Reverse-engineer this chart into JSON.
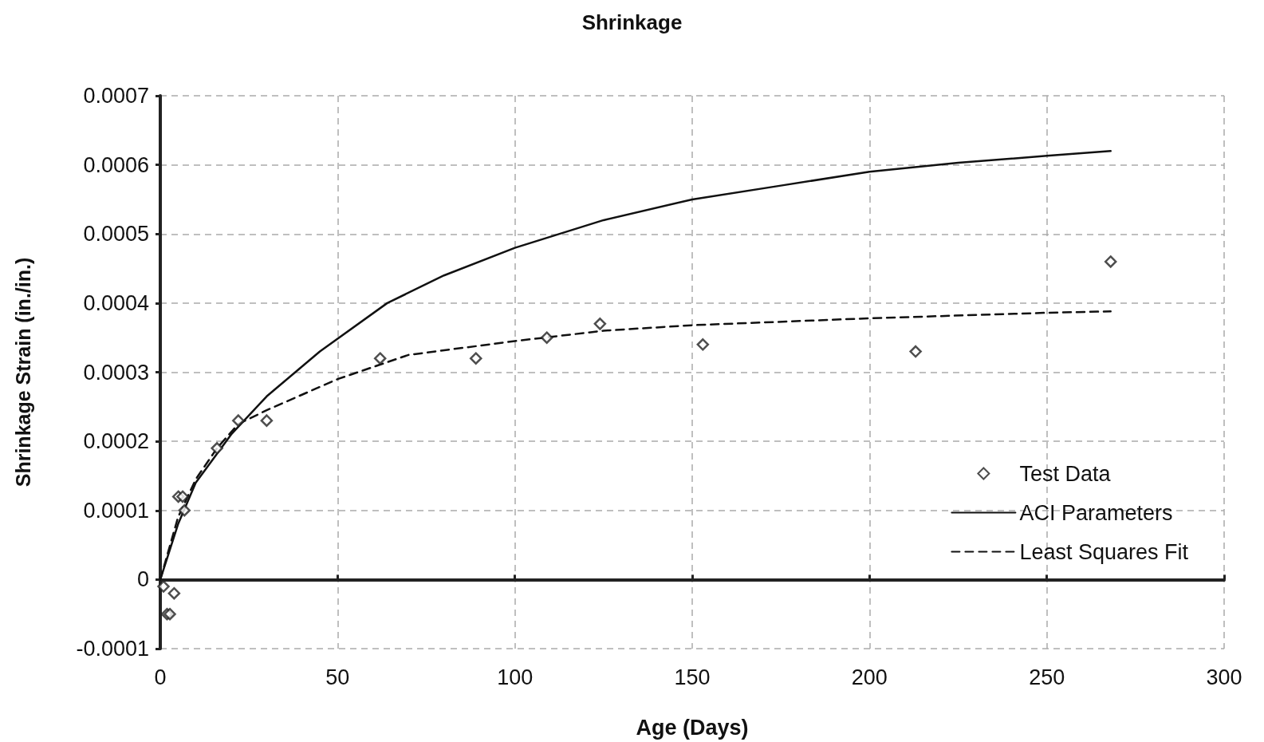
{
  "chart_data": {
    "type": "scatter",
    "title": "Shrinkage",
    "xlabel": "Age (Days)",
    "ylabel": "Shrinkage Strain (in./in.)",
    "xlim": [
      0,
      300
    ],
    "xticks": [
      0,
      50,
      100,
      150,
      200,
      250,
      300
    ],
    "ylim": [
      -0.0001,
      0.0007
    ],
    "yticks": [
      -0.0001,
      0,
      0.0001,
      0.0002,
      0.0003,
      0.0004,
      0.0005,
      0.0006,
      0.0007
    ],
    "grid": true,
    "legend": "bottom right",
    "series": [
      {
        "name": "Test Data",
        "marker": "diamond",
        "color": "#222222",
        "x": [
          0.9,
          1.9,
          2.7,
          3.9,
          5.1,
          6.3,
          6.8,
          16,
          22,
          30,
          62,
          89,
          109,
          124,
          153,
          213,
          268
        ],
        "values": [
          -1e-05,
          -5e-05,
          -5e-05,
          -2e-05,
          0.00012,
          0.00012,
          0.0001,
          0.00019,
          0.00023,
          0.00023,
          0.00032,
          0.00032,
          0.00035,
          0.00037,
          0.00034,
          0.00033,
          0.00046
        ]
      },
      {
        "name": "ACI Parameters",
        "type": "line",
        "marker": "none",
        "line_style": "solid",
        "color": "#111111",
        "x": [
          0,
          5,
          10,
          20,
          30,
          45,
          64,
          80,
          100,
          125,
          150,
          175,
          200,
          225,
          250,
          268
        ],
        "values": [
          0,
          8e-05,
          0.00014,
          0.00021,
          0.000265,
          0.00033,
          0.0004,
          0.00044,
          0.00048,
          0.00052,
          0.00055,
          0.00057,
          0.00059,
          0.000603,
          0.000613,
          0.00062
        ]
      },
      {
        "name": "Least Squares Fit",
        "type": "line",
        "marker": "none",
        "line_style": "dashed",
        "color": "#111111",
        "x": [
          0,
          5,
          10,
          16,
          22,
          30,
          50,
          70,
          100,
          125,
          150,
          200,
          250,
          268
        ],
        "values": [
          0,
          9e-05,
          0.000145,
          0.00019,
          0.000225,
          0.000245,
          0.00029,
          0.000325,
          0.000345,
          0.00036,
          0.000368,
          0.000378,
          0.000386,
          0.000388
        ]
      }
    ]
  }
}
